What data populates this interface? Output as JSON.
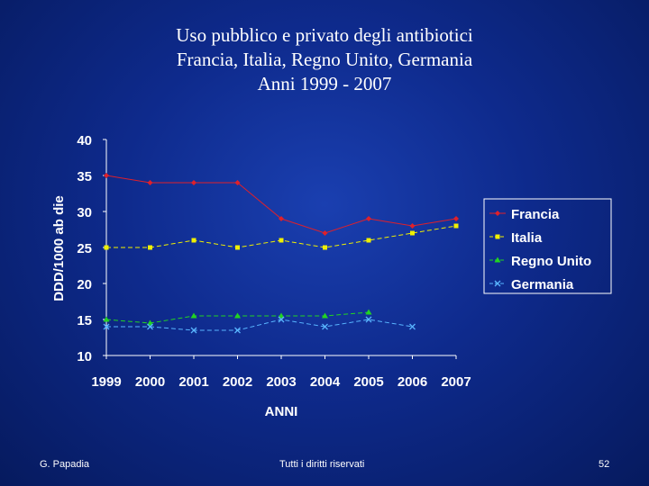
{
  "title_lines": [
    "Uso pubblico e privato degli antibiotici",
    "Francia, Italia, Regno Unito, Germania",
    "Anni 1999 - 2007"
  ],
  "footer": {
    "left": "G. Papadia",
    "center": "Tutti i diritti riservati",
    "right": "52"
  },
  "chart_data": {
    "type": "line",
    "title": "Uso pubblico e privato degli antibiotici Francia, Italia, Regno Unito, Germania Anni 1999 - 2007",
    "xlabel": "ANNI",
    "ylabel": "DDD/1000 ab die",
    "ylim": [
      10,
      40
    ],
    "yticks": [
      10,
      15,
      20,
      25,
      30,
      35,
      40
    ],
    "categories": [
      "1999",
      "2000",
      "2001",
      "2002",
      "2003",
      "2004",
      "2005",
      "2006",
      "2007"
    ],
    "legend_position": "right",
    "series": [
      {
        "name": "Francia",
        "color": "#e0202a",
        "marker": "diamond",
        "dash": "solid",
        "values": [
          35,
          34,
          34,
          34,
          29,
          27,
          29,
          28,
          29
        ]
      },
      {
        "name": "Italia",
        "color": "#f0f000",
        "marker": "square",
        "dash": "dashed",
        "values": [
          25,
          25,
          26,
          25,
          26,
          25,
          26,
          27,
          28
        ]
      },
      {
        "name": "Regno Unito",
        "color": "#22d422",
        "marker": "triangle",
        "dash": "dashed",
        "values": [
          15,
          14.5,
          15.5,
          15.5,
          15.5,
          15.5,
          16,
          null,
          null
        ]
      },
      {
        "name": "Germania",
        "color": "#58b4ff",
        "marker": "x",
        "dash": "dashed",
        "values": [
          14,
          14,
          13.5,
          13.5,
          15,
          14,
          15,
          14,
          null
        ]
      }
    ]
  }
}
